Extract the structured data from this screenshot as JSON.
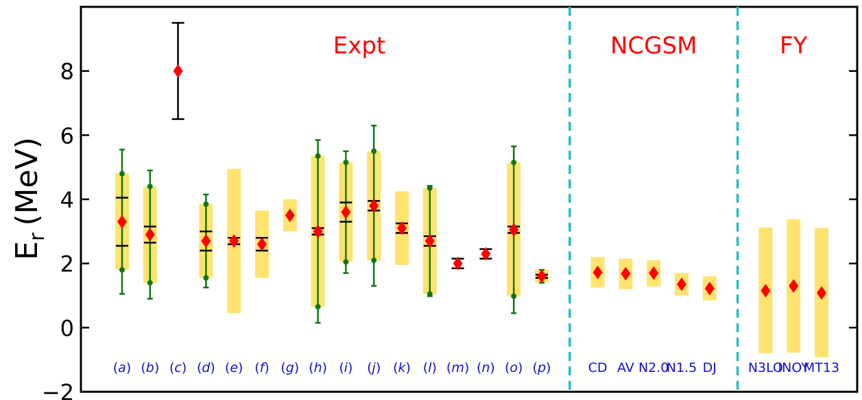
{
  "chart_data": {
    "type": "scatter",
    "ylabel": "E",
    "ylabel_sub": "r",
    "ylabel_unit": "(MeV)",
    "ylim": [
      -2,
      10
    ],
    "yticks": [
      -2,
      0,
      2,
      4,
      6,
      8
    ],
    "grid": false,
    "colors": {
      "marker": "#ff0000",
      "band": "#ffe36e",
      "error": "#117711",
      "cap": "#000000",
      "divider": "#1ec0c0",
      "label": "#1010cc",
      "section_title": "#ff0000"
    },
    "sections": [
      {
        "name": "Expt",
        "categories": [
          "a",
          "b",
          "c",
          "d",
          "e",
          "f",
          "g",
          "h",
          "i",
          "j",
          "k",
          "l",
          "m",
          "n",
          "o",
          "p"
        ]
      },
      {
        "name": "NCGSM",
        "categories": [
          "CD",
          "AV",
          "N2.0",
          "N1.5",
          "DJ"
        ]
      },
      {
        "name": "FY",
        "categories": [
          "N3LO",
          "INOY",
          "MT13"
        ]
      }
    ],
    "points": [
      {
        "label": "(a)",
        "x": 1,
        "y": 3.3,
        "band": [
          1.8,
          4.8
        ],
        "range": [
          1.05,
          5.55
        ],
        "caps": [
          2.55,
          4.05
        ],
        "dots": [
          1.8,
          4.8
        ]
      },
      {
        "label": "(b)",
        "x": 2,
        "y": 2.9,
        "band": [
          1.4,
          4.4
        ],
        "range": [
          0.9,
          4.9
        ],
        "caps": [
          2.65,
          3.15
        ],
        "dots": [
          1.4,
          4.4
        ]
      },
      {
        "label": "(c)",
        "x": 3,
        "y": 8.0,
        "black_range": [
          6.5,
          9.5
        ]
      },
      {
        "label": "(d)",
        "x": 4,
        "y": 2.7,
        "band": [
          1.55,
          3.85
        ],
        "range": [
          1.25,
          4.15
        ],
        "caps": [
          2.4,
          3.0
        ],
        "dots": [
          1.55,
          3.85
        ]
      },
      {
        "label": "(e)",
        "x": 5,
        "y": 2.7,
        "band": [
          0.45,
          4.95
        ],
        "caps": [
          2.6,
          2.8
        ]
      },
      {
        "label": "(f)",
        "x": 6,
        "y": 2.6,
        "band": [
          1.55,
          3.65
        ],
        "caps": [
          2.4,
          2.8
        ]
      },
      {
        "label": "(g)",
        "x": 7,
        "y": 3.5,
        "band": [
          3.0,
          4.0
        ]
      },
      {
        "label": "(h)",
        "x": 8,
        "y": 3.0,
        "band": [
          0.65,
          5.35
        ],
        "range": [
          0.15,
          5.85
        ],
        "caps": [
          2.9,
          3.1
        ],
        "dots": [
          0.65,
          5.35
        ]
      },
      {
        "label": "(i)",
        "x": 9,
        "y": 3.6,
        "band": [
          2.05,
          5.15
        ],
        "range": [
          1.7,
          5.5
        ],
        "caps": [
          3.3,
          3.9
        ],
        "dots": [
          2.05,
          5.15
        ]
      },
      {
        "label": "(j)",
        "x": 10,
        "y": 3.8,
        "band": [
          2.1,
          5.5
        ],
        "range": [
          1.3,
          6.3
        ],
        "caps": [
          3.65,
          3.95
        ],
        "dots": [
          2.1,
          5.5
        ]
      },
      {
        "label": "(k)",
        "x": 11,
        "y": 3.1,
        "band": [
          1.95,
          4.25
        ],
        "caps": [
          2.95,
          3.25
        ]
      },
      {
        "label": "(l)",
        "x": 12,
        "y": 2.7,
        "band": [
          1.05,
          4.35
        ],
        "range": [
          0.98,
          4.42
        ],
        "caps": [
          2.55,
          2.85
        ],
        "dots": [
          1.05,
          4.35
        ]
      },
      {
        "label": "(m)",
        "x": 13,
        "y": 2.0,
        "caps": [
          1.85,
          2.15
        ]
      },
      {
        "label": "(n)",
        "x": 14,
        "y": 2.3,
        "caps": [
          2.15,
          2.45
        ]
      },
      {
        "label": "(o)",
        "x": 15,
        "y": 3.05,
        "band": [
          0.98,
          5.15
        ],
        "range": [
          0.45,
          5.65
        ],
        "caps": [
          2.95,
          3.15
        ],
        "dots": [
          0.98,
          5.15
        ]
      },
      {
        "label": "(p)",
        "x": 16,
        "y": 1.6,
        "band": [
          1.4,
          1.8
        ],
        "range": [
          1.4,
          1.8
        ],
        "caps": [
          1.55,
          1.65
        ]
      },
      {
        "label": "CD",
        "x": 18,
        "y": 1.72,
        "band": [
          1.25,
          2.2
        ]
      },
      {
        "label": "AV",
        "x": 19,
        "y": 1.68,
        "band": [
          1.2,
          2.15
        ]
      },
      {
        "label": "N2.0",
        "x": 20,
        "y": 1.7,
        "band": [
          1.28,
          2.1
        ]
      },
      {
        "label": "N1.5",
        "x": 21,
        "y": 1.35,
        "band": [
          1.0,
          1.7
        ]
      },
      {
        "label": "DJ",
        "x": 22,
        "y": 1.22,
        "band": [
          0.85,
          1.6
        ]
      },
      {
        "label": "N3LO",
        "x": 24,
        "y": 1.15,
        "band": [
          -0.8,
          3.12
        ]
      },
      {
        "label": "INOY",
        "x": 25,
        "y": 1.3,
        "band": [
          -0.78,
          3.38
        ]
      },
      {
        "label": "MT13",
        "x": 26,
        "y": 1.08,
        "band": [
          -0.92,
          3.1
        ]
      }
    ]
  }
}
